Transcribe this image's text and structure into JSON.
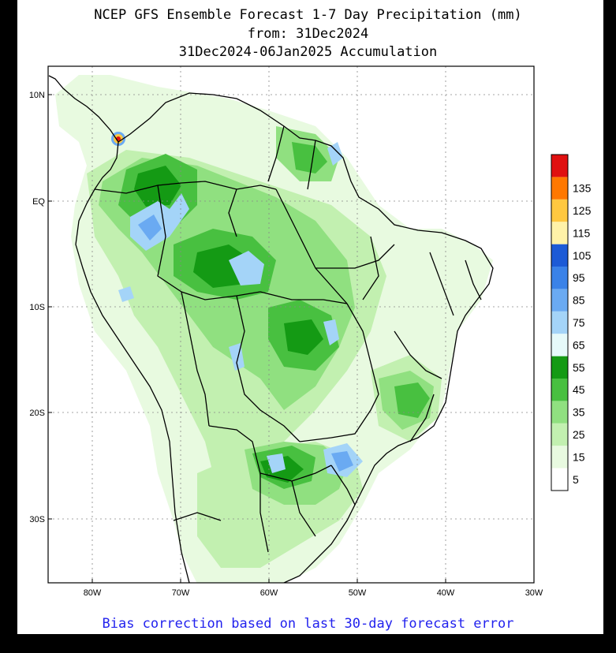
{
  "title": {
    "line1": "NCEP GFS Ensemble Forecast 1-7 Day Precipitation (mm)",
    "line2": "from: 31Dec2024",
    "line3": "31Dec2024-06Jan2025 Accumulation"
  },
  "footer": "Bias correction based on last 30-day forecast error",
  "axes": {
    "lat_labels": [
      "10N",
      "EQ",
      "10S",
      "20S",
      "30S"
    ],
    "lon_labels": [
      "80W",
      "70W",
      "60W",
      "50W",
      "40W",
      "30W"
    ]
  },
  "legend": {
    "unit": "mm",
    "bins": [
      {
        "label": "5",
        "color": "#ffffff"
      },
      {
        "label": "15",
        "color": "#e8fae0"
      },
      {
        "label": "25",
        "color": "#c2f0b0"
      },
      {
        "label": "35",
        "color": "#90e080"
      },
      {
        "label": "45",
        "color": "#48c040"
      },
      {
        "label": "55",
        "color": "#149a14"
      },
      {
        "label": "65",
        "color": "#e6fafa"
      },
      {
        "label": "75",
        "color": "#a4d4f8"
      },
      {
        "label": "85",
        "color": "#6aaaf2"
      },
      {
        "label": "95",
        "color": "#3a82e8"
      },
      {
        "label": "105",
        "color": "#1c5ad6"
      },
      {
        "label": "115",
        "color": "#fff2a8"
      },
      {
        "label": "125",
        "color": "#ffc840"
      },
      {
        "label": "135",
        "color": "#ff7800"
      },
      {
        "label": "",
        "color": "#e01010"
      }
    ]
  },
  "colors": {
    "border": "#000000",
    "grid": "#888888",
    "footer_text": "#2222ee"
  }
}
